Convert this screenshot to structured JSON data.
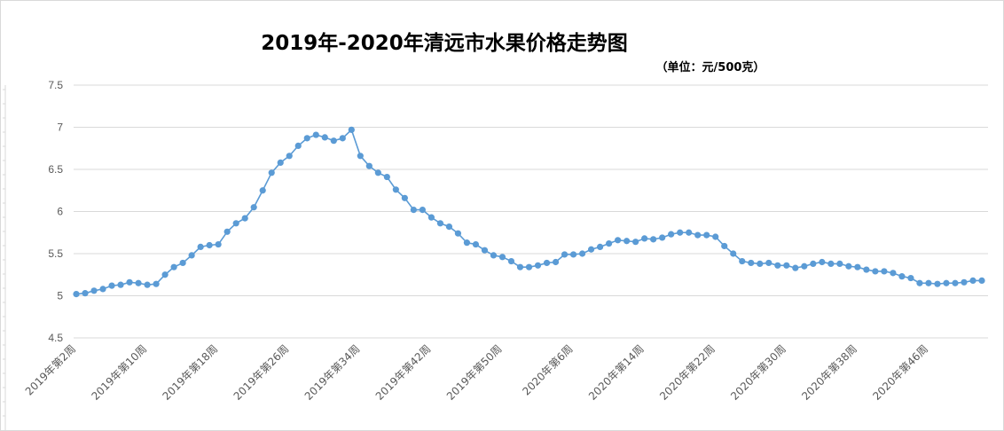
{
  "chart_data": {
    "type": "line",
    "title": "2019年-2020年清远市水果价格走势图",
    "subtitle": "（单位：元/500克）",
    "xlabel": "",
    "ylabel": "",
    "ylim": [
      4.5,
      7.5
    ],
    "yticks": [
      "4.5",
      "5",
      "5.5",
      "6",
      "6.5",
      "7",
      "7.5"
    ],
    "grid": true,
    "legend": "none",
    "line_color": "#5b9bd5",
    "x_tick_labels": [
      {
        "index": 0,
        "label": "2019年第2周"
      },
      {
        "index": 8,
        "label": "2019年第10周"
      },
      {
        "index": 16,
        "label": "2019年第18周"
      },
      {
        "index": 24,
        "label": "2019年第26周"
      },
      {
        "index": 32,
        "label": "2019年第34周"
      },
      {
        "index": 40,
        "label": "2019年第42周"
      },
      {
        "index": 48,
        "label": "2019年第50周"
      },
      {
        "index": 56,
        "label": "2020年第6周"
      },
      {
        "index": 64,
        "label": "2020年第14周"
      },
      {
        "index": 72,
        "label": "2020年第22周"
      },
      {
        "index": 80,
        "label": "2020年第30周"
      },
      {
        "index": 88,
        "label": "2020年第38周"
      },
      {
        "index": 96,
        "label": "2020年第46周"
      }
    ],
    "series": [
      {
        "values": [
          5.02,
          5.03,
          5.06,
          5.08,
          5.12,
          5.13,
          5.16,
          5.15,
          5.13,
          5.14,
          5.25,
          5.34,
          5.39,
          5.48,
          5.58,
          5.6,
          5.61,
          5.76,
          5.86,
          5.92,
          6.05,
          6.25,
          6.46,
          6.58,
          6.66,
          6.78,
          6.87,
          6.91,
          6.88,
          6.84,
          6.87,
          6.97,
          6.66,
          6.54,
          6.46,
          6.41,
          6.26,
          6.16,
          6.02,
          6.02,
          5.93,
          5.86,
          5.82,
          5.74,
          5.63,
          5.61,
          5.54,
          5.48,
          5.46,
          5.41,
          5.34,
          5.34,
          5.36,
          5.39,
          5.4,
          5.49,
          5.49,
          5.5,
          5.55,
          5.58,
          5.62,
          5.66,
          5.65,
          5.64,
          5.68,
          5.67,
          5.69,
          5.73,
          5.75,
          5.75,
          5.72,
          5.72,
          5.7,
          5.59,
          5.5,
          5.41,
          5.39,
          5.38,
          5.39,
          5.36,
          5.36,
          5.33,
          5.35,
          5.38,
          5.4,
          5.38,
          5.38,
          5.35,
          5.34,
          5.31,
          5.29,
          5.29,
          5.27,
          5.23,
          5.21,
          5.15,
          5.15,
          5.14,
          5.15,
          5.15,
          5.16,
          5.18,
          5.18
        ]
      }
    ]
  }
}
